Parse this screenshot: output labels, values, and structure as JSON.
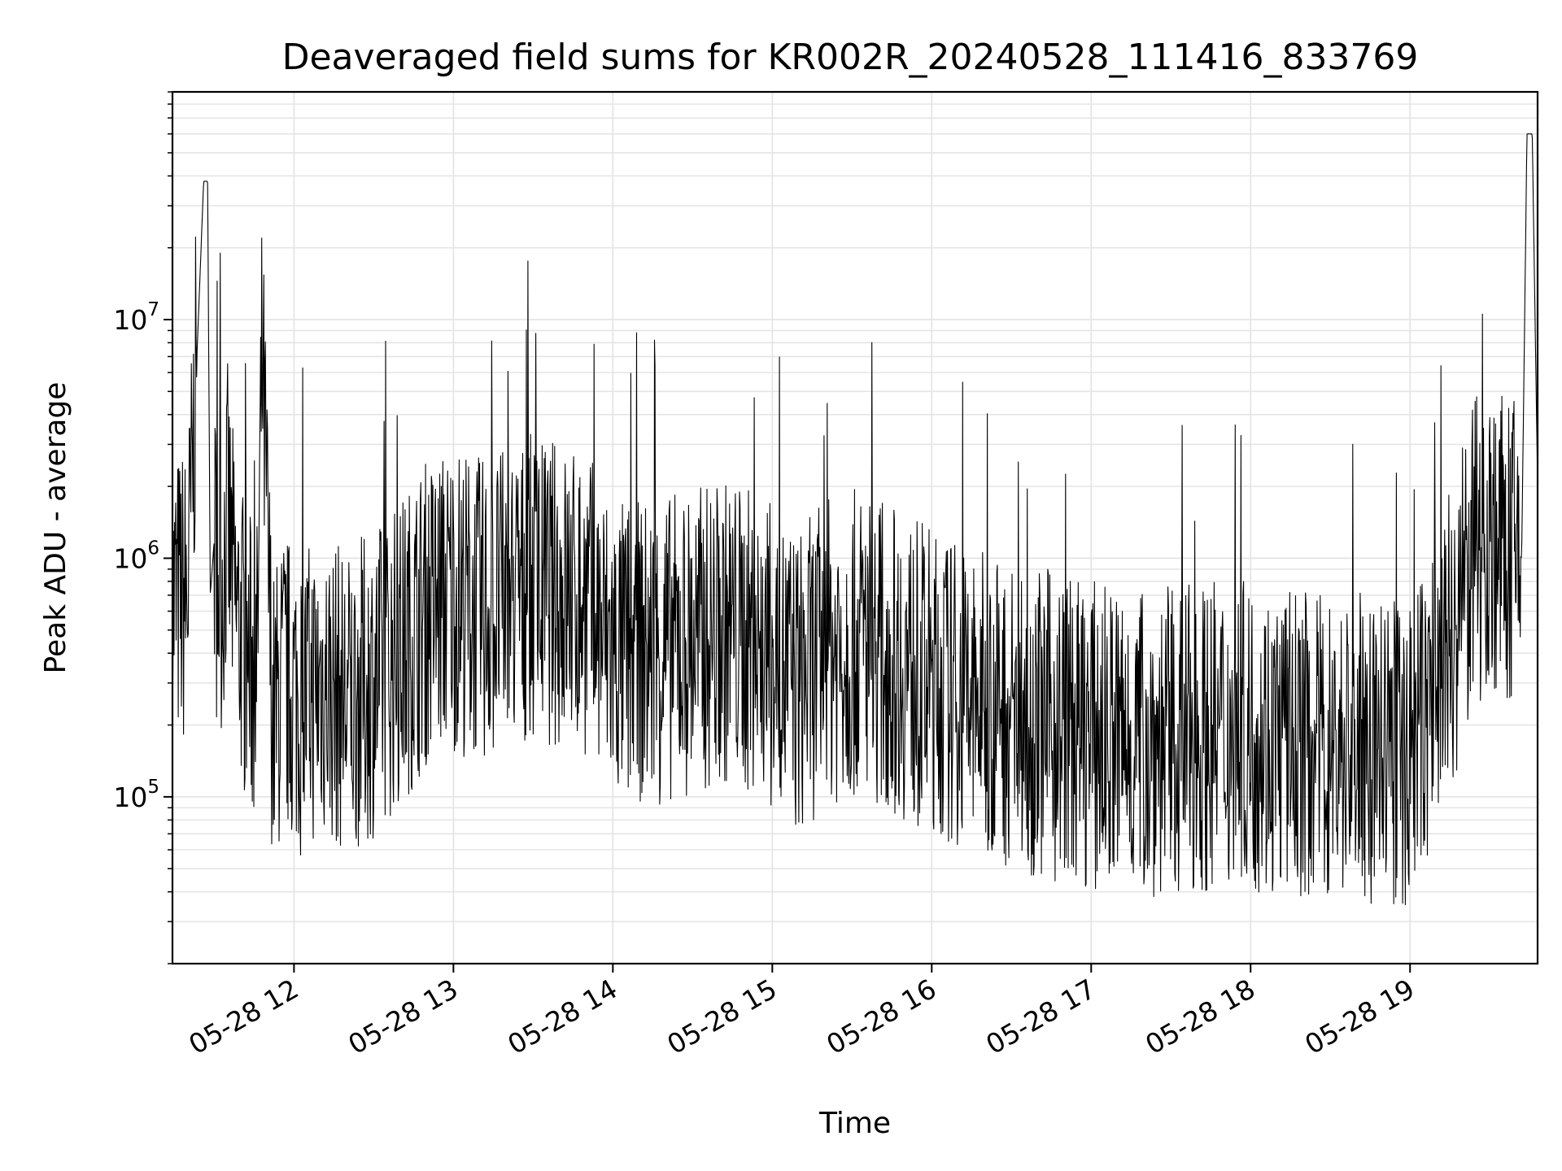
{
  "chart_data": {
    "type": "line",
    "title": "Deaveraged field sums for KR002R_20240528_111416_833769",
    "xlabel": "Time",
    "ylabel": "Peak ADU - average",
    "y_scale": "log",
    "ylim": [
      20000,
      90000000
    ],
    "xlim": [
      "2024-05-28T11:14:16",
      "2024-05-28T19:48:00"
    ],
    "grid": true,
    "line_color": "#000000",
    "grid_color": "#e5e5e5",
    "x_ticks": [
      {
        "value": "2024-05-28T12:00:00",
        "label": "05-28 12"
      },
      {
        "value": "2024-05-28T13:00:00",
        "label": "05-28 13"
      },
      {
        "value": "2024-05-28T14:00:00",
        "label": "05-28 14"
      },
      {
        "value": "2024-05-28T15:00:00",
        "label": "05-28 15"
      },
      {
        "value": "2024-05-28T16:00:00",
        "label": "05-28 16"
      },
      {
        "value": "2024-05-28T17:00:00",
        "label": "05-28 17"
      },
      {
        "value": "2024-05-28T18:00:00",
        "label": "05-28 18"
      },
      {
        "value": "2024-05-28T19:00:00",
        "label": "05-28 19"
      }
    ],
    "y_ticks": [
      {
        "value": 100000,
        "base": "10",
        "exp": "5"
      },
      {
        "value": 1000000,
        "base": "10",
        "exp": "6"
      },
      {
        "value": 10000000,
        "base": "10",
        "exp": "7"
      }
    ],
    "series": [
      {
        "x": [
          "2024-05-28T11:14:16",
          "2024-05-28T11:20:00",
          "2024-05-28T11:26:00",
          "2024-05-28T11:27:30",
          "2024-05-28T11:28:30",
          "2024-05-28T11:30:00",
          "2024-05-28T11:31:00",
          "2024-05-28T11:33:00",
          "2024-05-28T11:35:00",
          "2024-05-28T11:38:00",
          "2024-05-28T11:42:00",
          "2024-05-28T11:46:00",
          "2024-05-28T11:48:00",
          "2024-05-28T11:52:00",
          "2024-05-28T11:56:00",
          "2024-05-28T12:03:00",
          "2024-05-28T12:10:00",
          "2024-05-28T12:20:00",
          "2024-05-28T12:30:00",
          "2024-05-28T12:40:00",
          "2024-05-28T12:50:00",
          "2024-05-28T13:00:00",
          "2024-05-28T13:10:00",
          "2024-05-28T13:20:00",
          "2024-05-28T13:30:00",
          "2024-05-28T13:40:00",
          "2024-05-28T13:50:00",
          "2024-05-28T14:00:00",
          "2024-05-28T14:15:00",
          "2024-05-28T14:30:00",
          "2024-05-28T14:45:00",
          "2024-05-28T15:00:00",
          "2024-05-28T15:10:00",
          "2024-05-28T15:20:00",
          "2024-05-28T15:35:00",
          "2024-05-28T15:50:00",
          "2024-05-28T16:00:00",
          "2024-05-28T16:15:00",
          "2024-05-28T16:30:00",
          "2024-05-28T16:45:00",
          "2024-05-28T17:00:00",
          "2024-05-28T17:15:00",
          "2024-05-28T17:30:00",
          "2024-05-28T17:45:00",
          "2024-05-28T18:00:00",
          "2024-05-28T18:15:00",
          "2024-05-28T18:30:00",
          "2024-05-28T18:45:00",
          "2024-05-28T19:00:00",
          "2024-05-28T19:05:00",
          "2024-05-28T19:10:00",
          "2024-05-28T19:15:00",
          "2024-05-28T19:20:00",
          "2024-05-28T19:25:00",
          "2024-05-28T19:30:00",
          "2024-05-28T19:35:00",
          "2024-05-28T19:38:00",
          "2024-05-28T19:40:00",
          "2024-05-28T19:42:00",
          "2024-05-28T19:44:00",
          "2024-05-28T19:46:00",
          "2024-05-28T19:48:00"
        ],
        "y": [
          650000,
          700000,
          38000000,
          38000000,
          700000,
          1200000,
          900000,
          800000,
          1500000,
          600000,
          400000,
          300000,
          7000000,
          200000,
          300000,
          250000,
          300000,
          250000,
          300000,
          400000,
          600000,
          700000,
          600000,
          650000,
          750000,
          700000,
          650000,
          400000,
          400000,
          450000,
          500000,
          380000,
          300000,
          400000,
          450000,
          350000,
          300000,
          250000,
          220000,
          200000,
          180000,
          170000,
          170000,
          180000,
          180000,
          170000,
          160000,
          160000,
          150000,
          200000,
          300000,
          450000,
          700000,
          1100000,
          1200000,
          1100000,
          1000000,
          1100000,
          1000000,
          60000000,
          60000000,
          2000000
        ]
      }
    ]
  }
}
